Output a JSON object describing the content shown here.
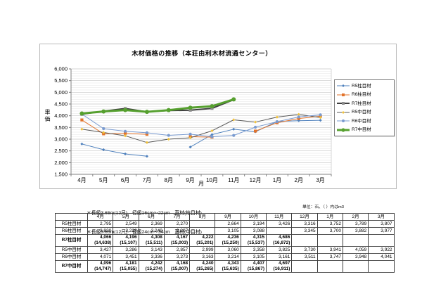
{
  "chart_data": {
    "type": "line",
    "title": "木材価格の推移（本荘由利木材流通センター）",
    "xlabel": "月",
    "ylabel": "単価",
    "ylim": [
      1500,
      6000
    ],
    "ytick_major": 500,
    "ytick_minor": 100,
    "grid": true,
    "legend_position": "right",
    "categories": [
      "4月",
      "5月",
      "6月",
      "7月",
      "8月",
      "9月",
      "10月",
      "11月",
      "12月",
      "1月",
      "2月",
      "3月"
    ],
    "series": [
      {
        "name": "R5柱目材",
        "color": "#4f81bd",
        "marker": "diamond",
        "marker_color": "#4f81bd",
        "width": 1,
        "values": [
          2795,
          2549,
          2369,
          2270,
          null,
          2664,
          3194,
          3426,
          3316,
          3752,
          3789,
          3807
        ]
      },
      {
        "name": "R6柱目材",
        "color": "#e2732b",
        "marker": "square",
        "marker_color": "#e2732b",
        "width": 1,
        "values": [
          3820,
          3228,
          3249,
          3207,
          null,
          3105,
          3088,
          null,
          3345,
          3700,
          3882,
          3977
        ]
      },
      {
        "name": "R7柱目材",
        "color": "#3f3f3f",
        "marker": "square",
        "marker_color": "#8c8c8c",
        "width": 2,
        "values": [
          4066,
          4196,
          4308,
          4167,
          4222,
          4236,
          4315,
          4686,
          null,
          null,
          null,
          null
        ]
      },
      {
        "name": "R5中目材",
        "color": "#595959",
        "marker": "diamond",
        "marker_color": "#f0c23c",
        "width": 1,
        "values": [
          3427,
          3286,
          3143,
          2857,
          2999,
          3060,
          3358,
          3825,
          3730,
          3941,
          4059,
          3922
        ]
      },
      {
        "name": "R6中目材",
        "color": "#7a9bd0",
        "marker": "circle",
        "marker_color": "#7a9bd0",
        "width": 1,
        "values": [
          4071,
          3451,
          3336,
          3273,
          3163,
          3214,
          3105,
          3161,
          3511,
          3747,
          3948,
          4041
        ]
      },
      {
        "name": "R7中目材",
        "color": "#56a02f",
        "marker": "circle",
        "marker_color": "#56a02f",
        "width": 3,
        "values": [
          4096,
          4181,
          4242,
          4168,
          4240,
          4343,
          4407,
          4697,
          null,
          null,
          null,
          null
        ]
      }
    ],
    "ytick_labels": [
      "1,500",
      "2,000",
      "2,500",
      "3,000",
      "3,500",
      "4,000",
      "4,500",
      "5,000",
      "5,500",
      "6,000"
    ]
  },
  "notes": [
    "＊長級3.65m(12尺)　径級16cm～22cm　直材(柱目材)",
    "＊長級3.65m(12尺)　径級24cm～34cm　直材(中目材)"
  ],
  "unit_note": "単位：石、（ ）内はm3",
  "table": {
    "col_headers": [
      "",
      "4月",
      "5月",
      "6月",
      "7月",
      "8月",
      "9月",
      "10月",
      "11月",
      "12月",
      "1月",
      "2月",
      "3月"
    ],
    "rows": [
      {
        "label": "R5柱目材",
        "bold": false,
        "values": [
          "2,795",
          "2,549",
          "2,369",
          "2,270",
          "",
          "2,664",
          "3,194",
          "3,426",
          "3,316",
          "3,752",
          "3,789",
          "3,807"
        ]
      },
      {
        "label": "R6柱目材",
        "bold": false,
        "values": [
          "3,820",
          "3,228",
          "3,249",
          "3,207",
          "",
          "3,105",
          "3,088",
          "",
          "3,345",
          "3,700",
          "3,882",
          "3,977"
        ]
      },
      {
        "label": "R7柱目材",
        "bold": true,
        "values": [
          "4,066",
          "4,196",
          "4,308",
          "4,167",
          "4,222",
          "4,236",
          "4,315",
          "4,686",
          "",
          "",
          "",
          ""
        ],
        "sub": [
          "(14,638)",
          "(15,107)",
          "(15,511)",
          "(15,003)",
          "(15,201)",
          "(15,250)",
          "(15,537)",
          "(16,872)",
          "",
          "",
          "",
          ""
        ]
      },
      {
        "label": "R5中目材",
        "bold": false,
        "values": [
          "3,427",
          "3,286",
          "3,143",
          "2,857",
          "2,999",
          "3,060",
          "3,358",
          "3,825",
          "3,730",
          "3,941",
          "4,059",
          "3,922"
        ]
      },
      {
        "label": "R6中目材",
        "bold": false,
        "values": [
          "4,071",
          "3,451",
          "3,336",
          "3,273",
          "3,163",
          "3,214",
          "3,105",
          "3,161",
          "3,511",
          "3,747",
          "3,948",
          "4,041"
        ]
      },
      {
        "label": "R7中目材",
        "bold": true,
        "values": [
          "4,096",
          "4,181",
          "4,242",
          "4,168",
          "4,240",
          "4,343",
          "4,407",
          "4,697",
          "",
          "",
          "",
          ""
        ],
        "sub": [
          "(14,747)",
          "(15,055)",
          "(15,274)",
          "(15,007)",
          "(15,265)",
          "(15,635)",
          "(15,867)",
          "(16,911)",
          "",
          "",
          "",
          ""
        ]
      }
    ]
  }
}
